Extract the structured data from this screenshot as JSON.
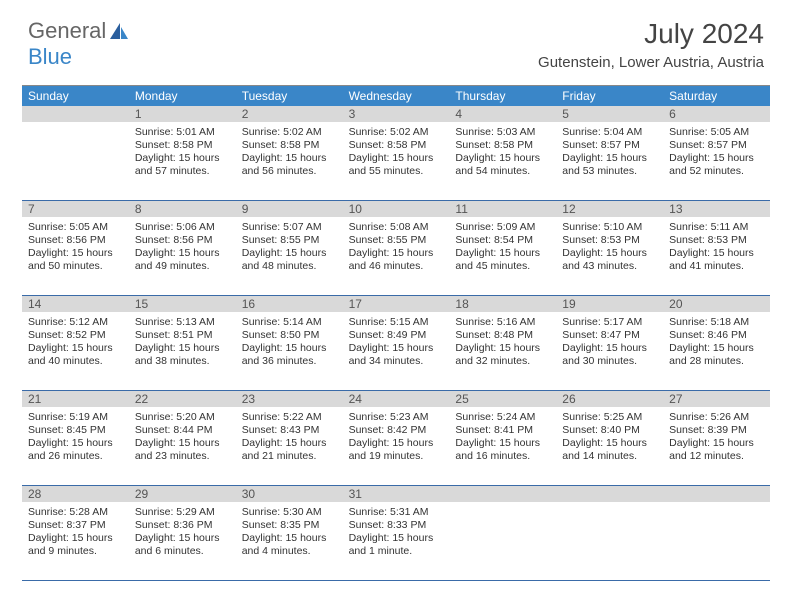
{
  "brand": {
    "part1": "General",
    "part2": "Blue"
  },
  "title": "July 2024",
  "location": "Gutenstein, Lower Austria, Austria",
  "header_bg": "#3a86c8",
  "daynum_bg": "#d9d9d9",
  "week_border": "#3a6ba8",
  "daynames": [
    "Sunday",
    "Monday",
    "Tuesday",
    "Wednesday",
    "Thursday",
    "Friday",
    "Saturday"
  ],
  "weeks": [
    [
      null,
      {
        "n": "1",
        "sr": "Sunrise: 5:01 AM",
        "ss": "Sunset: 8:58 PM",
        "d1": "Daylight: 15 hours",
        "d2": "and 57 minutes."
      },
      {
        "n": "2",
        "sr": "Sunrise: 5:02 AM",
        "ss": "Sunset: 8:58 PM",
        "d1": "Daylight: 15 hours",
        "d2": "and 56 minutes."
      },
      {
        "n": "3",
        "sr": "Sunrise: 5:02 AM",
        "ss": "Sunset: 8:58 PM",
        "d1": "Daylight: 15 hours",
        "d2": "and 55 minutes."
      },
      {
        "n": "4",
        "sr": "Sunrise: 5:03 AM",
        "ss": "Sunset: 8:58 PM",
        "d1": "Daylight: 15 hours",
        "d2": "and 54 minutes."
      },
      {
        "n": "5",
        "sr": "Sunrise: 5:04 AM",
        "ss": "Sunset: 8:57 PM",
        "d1": "Daylight: 15 hours",
        "d2": "and 53 minutes."
      },
      {
        "n": "6",
        "sr": "Sunrise: 5:05 AM",
        "ss": "Sunset: 8:57 PM",
        "d1": "Daylight: 15 hours",
        "d2": "and 52 minutes."
      }
    ],
    [
      {
        "n": "7",
        "sr": "Sunrise: 5:05 AM",
        "ss": "Sunset: 8:56 PM",
        "d1": "Daylight: 15 hours",
        "d2": "and 50 minutes."
      },
      {
        "n": "8",
        "sr": "Sunrise: 5:06 AM",
        "ss": "Sunset: 8:56 PM",
        "d1": "Daylight: 15 hours",
        "d2": "and 49 minutes."
      },
      {
        "n": "9",
        "sr": "Sunrise: 5:07 AM",
        "ss": "Sunset: 8:55 PM",
        "d1": "Daylight: 15 hours",
        "d2": "and 48 minutes."
      },
      {
        "n": "10",
        "sr": "Sunrise: 5:08 AM",
        "ss": "Sunset: 8:55 PM",
        "d1": "Daylight: 15 hours",
        "d2": "and 46 minutes."
      },
      {
        "n": "11",
        "sr": "Sunrise: 5:09 AM",
        "ss": "Sunset: 8:54 PM",
        "d1": "Daylight: 15 hours",
        "d2": "and 45 minutes."
      },
      {
        "n": "12",
        "sr": "Sunrise: 5:10 AM",
        "ss": "Sunset: 8:53 PM",
        "d1": "Daylight: 15 hours",
        "d2": "and 43 minutes."
      },
      {
        "n": "13",
        "sr": "Sunrise: 5:11 AM",
        "ss": "Sunset: 8:53 PM",
        "d1": "Daylight: 15 hours",
        "d2": "and 41 minutes."
      }
    ],
    [
      {
        "n": "14",
        "sr": "Sunrise: 5:12 AM",
        "ss": "Sunset: 8:52 PM",
        "d1": "Daylight: 15 hours",
        "d2": "and 40 minutes."
      },
      {
        "n": "15",
        "sr": "Sunrise: 5:13 AM",
        "ss": "Sunset: 8:51 PM",
        "d1": "Daylight: 15 hours",
        "d2": "and 38 minutes."
      },
      {
        "n": "16",
        "sr": "Sunrise: 5:14 AM",
        "ss": "Sunset: 8:50 PM",
        "d1": "Daylight: 15 hours",
        "d2": "and 36 minutes."
      },
      {
        "n": "17",
        "sr": "Sunrise: 5:15 AM",
        "ss": "Sunset: 8:49 PM",
        "d1": "Daylight: 15 hours",
        "d2": "and 34 minutes."
      },
      {
        "n": "18",
        "sr": "Sunrise: 5:16 AM",
        "ss": "Sunset: 8:48 PM",
        "d1": "Daylight: 15 hours",
        "d2": "and 32 minutes."
      },
      {
        "n": "19",
        "sr": "Sunrise: 5:17 AM",
        "ss": "Sunset: 8:47 PM",
        "d1": "Daylight: 15 hours",
        "d2": "and 30 minutes."
      },
      {
        "n": "20",
        "sr": "Sunrise: 5:18 AM",
        "ss": "Sunset: 8:46 PM",
        "d1": "Daylight: 15 hours",
        "d2": "and 28 minutes."
      }
    ],
    [
      {
        "n": "21",
        "sr": "Sunrise: 5:19 AM",
        "ss": "Sunset: 8:45 PM",
        "d1": "Daylight: 15 hours",
        "d2": "and 26 minutes."
      },
      {
        "n": "22",
        "sr": "Sunrise: 5:20 AM",
        "ss": "Sunset: 8:44 PM",
        "d1": "Daylight: 15 hours",
        "d2": "and 23 minutes."
      },
      {
        "n": "23",
        "sr": "Sunrise: 5:22 AM",
        "ss": "Sunset: 8:43 PM",
        "d1": "Daylight: 15 hours",
        "d2": "and 21 minutes."
      },
      {
        "n": "24",
        "sr": "Sunrise: 5:23 AM",
        "ss": "Sunset: 8:42 PM",
        "d1": "Daylight: 15 hours",
        "d2": "and 19 minutes."
      },
      {
        "n": "25",
        "sr": "Sunrise: 5:24 AM",
        "ss": "Sunset: 8:41 PM",
        "d1": "Daylight: 15 hours",
        "d2": "and 16 minutes."
      },
      {
        "n": "26",
        "sr": "Sunrise: 5:25 AM",
        "ss": "Sunset: 8:40 PM",
        "d1": "Daylight: 15 hours",
        "d2": "and 14 minutes."
      },
      {
        "n": "27",
        "sr": "Sunrise: 5:26 AM",
        "ss": "Sunset: 8:39 PM",
        "d1": "Daylight: 15 hours",
        "d2": "and 12 minutes."
      }
    ],
    [
      {
        "n": "28",
        "sr": "Sunrise: 5:28 AM",
        "ss": "Sunset: 8:37 PM",
        "d1": "Daylight: 15 hours",
        "d2": "and 9 minutes."
      },
      {
        "n": "29",
        "sr": "Sunrise: 5:29 AM",
        "ss": "Sunset: 8:36 PM",
        "d1": "Daylight: 15 hours",
        "d2": "and 6 minutes."
      },
      {
        "n": "30",
        "sr": "Sunrise: 5:30 AM",
        "ss": "Sunset: 8:35 PM",
        "d1": "Daylight: 15 hours",
        "d2": "and 4 minutes."
      },
      {
        "n": "31",
        "sr": "Sunrise: 5:31 AM",
        "ss": "Sunset: 8:33 PM",
        "d1": "Daylight: 15 hours",
        "d2": "and 1 minute."
      },
      null,
      null,
      null
    ]
  ]
}
